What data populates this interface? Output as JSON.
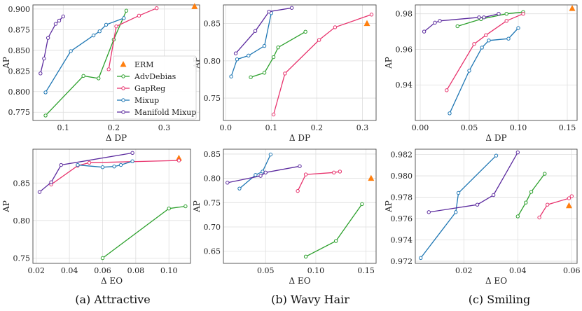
{
  "captions": [
    "(a) Attractive",
    "(b) Wavy Hair",
    "(c) Smiling"
  ],
  "legend": {
    "location": "right-center of first panel",
    "entries": [
      {
        "name": "ERM",
        "marker": "triangle",
        "color": "#ff7f0e"
      },
      {
        "name": "AdvDebias",
        "marker": "line-circle",
        "color": "#2ca02c"
      },
      {
        "name": "GapReg",
        "marker": "line-circle",
        "color": "#e8336d"
      },
      {
        "name": "Mixup",
        "marker": "line-circle",
        "color": "#1f77b4"
      },
      {
        "name": "Manifold Mixup",
        "marker": "line-circle",
        "color": "#5b2a9e"
      }
    ]
  },
  "chart_data": [
    {
      "type": "line",
      "caption": "(a) Attractive",
      "xlabel": "Δ DP",
      "ylabel": "AP",
      "xlim": [
        0.04,
        0.37
      ],
      "ylim": [
        0.765,
        0.905
      ],
      "grid": true,
      "xticks": [
        0.1,
        0.2,
        0.3
      ],
      "xtick_labels": [
        "0.1",
        "0.2",
        "0.3"
      ],
      "yticks": [
        0.775,
        0.8,
        0.825,
        0.85,
        0.875,
        0.9
      ],
      "ytick_labels": [
        "0.775",
        "0.800",
        "0.825",
        "0.850",
        "0.875",
        "0.900"
      ],
      "series": [
        {
          "name": "ERM",
          "color": "#ff7f0e",
          "marker": "triangle",
          "points": [
            [
              0.36,
              0.903
            ]
          ]
        },
        {
          "name": "AdvDebias",
          "color": "#2ca02c",
          "points": [
            [
              0.065,
              0.771
            ],
            [
              0.14,
              0.819
            ],
            [
              0.17,
              0.816
            ],
            [
              0.2,
              0.863
            ],
            [
              0.225,
              0.898
            ]
          ]
        },
        {
          "name": "GapReg",
          "color": "#e8336d",
          "points": [
            [
              0.19,
              0.827
            ],
            [
              0.205,
              0.879
            ],
            [
              0.25,
              0.892
            ],
            [
              0.285,
              0.901
            ]
          ]
        },
        {
          "name": "Mixup",
          "color": "#1f77b4",
          "points": [
            [
              0.065,
              0.799
            ],
            [
              0.115,
              0.849
            ],
            [
              0.16,
              0.868
            ],
            [
              0.172,
              0.873
            ],
            [
              0.185,
              0.881
            ],
            [
              0.22,
              0.889
            ]
          ]
        },
        {
          "name": "Manifold Mixup",
          "color": "#5b2a9e",
          "points": [
            [
              0.055,
              0.822
            ],
            [
              0.062,
              0.84
            ],
            [
              0.07,
              0.865
            ],
            [
              0.085,
              0.882
            ],
            [
              0.092,
              0.886
            ],
            [
              0.1,
              0.891
            ]
          ]
        }
      ]
    },
    {
      "type": "line",
      "caption": "(b) Wavy Hair",
      "xlabel": "Δ DP",
      "ylabel": "AP",
      "xlim": [
        -0.005,
        0.33
      ],
      "ylim": [
        0.72,
        0.875
      ],
      "grid": true,
      "xticks": [
        0.0,
        0.1,
        0.2,
        0.3
      ],
      "xtick_labels": [
        "0.0",
        "0.1",
        "0.2",
        "0.3"
      ],
      "yticks": [
        0.75,
        0.8,
        0.85
      ],
      "ytick_labels": [
        "0.75",
        "0.80",
        "0.85"
      ],
      "series": [
        {
          "name": "ERM",
          "color": "#ff7f0e",
          "marker": "triangle",
          "points": [
            [
              0.31,
              0.85
            ]
          ]
        },
        {
          "name": "AdvDebias",
          "color": "#2ca02c",
          "points": [
            [
              0.055,
              0.778
            ],
            [
              0.085,
              0.784
            ],
            [
              0.105,
              0.805
            ],
            [
              0.115,
              0.818
            ],
            [
              0.175,
              0.839
            ]
          ]
        },
        {
          "name": "GapReg",
          "color": "#e8336d",
          "points": [
            [
              0.105,
              0.728
            ],
            [
              0.13,
              0.783
            ],
            [
              0.205,
              0.828
            ],
            [
              0.24,
              0.845
            ],
            [
              0.32,
              0.862
            ]
          ]
        },
        {
          "name": "Mixup",
          "color": "#1f77b4",
          "points": [
            [
              0.012,
              0.779
            ],
            [
              0.025,
              0.802
            ],
            [
              0.05,
              0.807
            ],
            [
              0.085,
              0.82
            ],
            [
              0.1,
              0.864
            ]
          ]
        },
        {
          "name": "Manifold Mixup",
          "color": "#5b2a9e",
          "points": [
            [
              0.022,
              0.81
            ],
            [
              0.065,
              0.84
            ],
            [
              0.095,
              0.866
            ],
            [
              0.145,
              0.871
            ]
          ]
        }
      ]
    },
    {
      "type": "line",
      "caption": "(c) Smiling",
      "xlabel": "Δ DP",
      "ylabel": "AP",
      "xlim": [
        -0.005,
        0.16
      ],
      "ylim": [
        0.92,
        0.985
      ],
      "grid": true,
      "xticks": [
        0.0,
        0.05,
        0.1,
        0.15
      ],
      "xtick_labels": [
        "0.00",
        "0.05",
        "0.10",
        "0.15"
      ],
      "yticks": [
        0.94,
        0.96,
        0.98
      ],
      "ytick_labels": [
        "0.94",
        "0.96",
        "0.98"
      ],
      "series": [
        {
          "name": "ERM",
          "color": "#ff7f0e",
          "marker": "triangle",
          "points": [
            [
              0.155,
              0.983
            ]
          ]
        },
        {
          "name": "AdvDebias",
          "color": "#2ca02c",
          "points": [
            [
              0.038,
              0.973
            ],
            [
              0.062,
              0.977
            ],
            [
              0.088,
              0.98
            ],
            [
              0.105,
              0.981
            ]
          ]
        },
        {
          "name": "GapReg",
          "color": "#e8336d",
          "points": [
            [
              0.027,
              0.937
            ],
            [
              0.055,
              0.963
            ],
            [
              0.067,
              0.968
            ],
            [
              0.088,
              0.976
            ],
            [
              0.105,
              0.98
            ]
          ]
        },
        {
          "name": "Mixup",
          "color": "#1f77b4",
          "points": [
            [
              0.03,
              0.924
            ],
            [
              0.05,
              0.948
            ],
            [
              0.063,
              0.961
            ],
            [
              0.07,
              0.965
            ],
            [
              0.09,
              0.966
            ],
            [
              0.1,
              0.972
            ]
          ]
        },
        {
          "name": "Manifold Mixup",
          "color": "#5b2a9e",
          "points": [
            [
              0.004,
              0.97
            ],
            [
              0.015,
              0.975
            ],
            [
              0.02,
              0.976
            ],
            [
              0.06,
              0.978
            ],
            [
              0.065,
              0.978
            ],
            [
              0.08,
              0.98
            ]
          ]
        }
      ]
    },
    {
      "type": "line",
      "caption": "(a) Attractive",
      "xlabel": "Δ EO",
      "ylabel": "AP",
      "xlim": [
        0.018,
        0.113
      ],
      "ylim": [
        0.743,
        0.895
      ],
      "grid": true,
      "xticks": [
        0.02,
        0.04,
        0.06,
        0.08,
        0.1
      ],
      "xtick_labels": [
        "0.02",
        "0.04",
        "0.06",
        "0.08",
        "0.10"
      ],
      "yticks": [
        0.75,
        0.8,
        0.85
      ],
      "ytick_labels": [
        "0.75",
        "0.80",
        "0.85"
      ],
      "series": [
        {
          "name": "ERM",
          "color": "#ff7f0e",
          "marker": "triangle",
          "points": [
            [
              0.106,
              0.883
            ]
          ]
        },
        {
          "name": "AdvDebias",
          "color": "#2ca02c",
          "points": [
            [
              0.06,
              0.75
            ],
            [
              0.1,
              0.816
            ],
            [
              0.11,
              0.819
            ]
          ]
        },
        {
          "name": "GapReg",
          "color": "#e8336d",
          "points": [
            [
              0.029,
              0.848
            ],
            [
              0.045,
              0.873
            ],
            [
              0.052,
              0.877
            ],
            [
              0.106,
              0.88
            ]
          ]
        },
        {
          "name": "Mixup",
          "color": "#1f77b4",
          "points": [
            [
              0.045,
              0.874
            ],
            [
              0.06,
              0.871
            ],
            [
              0.067,
              0.872
            ],
            [
              0.071,
              0.874
            ],
            [
              0.078,
              0.879
            ]
          ]
        },
        {
          "name": "Manifold Mixup",
          "color": "#5b2a9e",
          "points": [
            [
              0.022,
              0.838
            ],
            [
              0.029,
              0.851
            ],
            [
              0.035,
              0.874
            ],
            [
              0.078,
              0.89
            ]
          ]
        }
      ]
    },
    {
      "type": "line",
      "caption": "(b) Wavy Hair",
      "xlabel": "Δ EO",
      "ylabel": "AP",
      "xlim": [
        0.008,
        0.16
      ],
      "ylim": [
        0.625,
        0.86
      ],
      "grid": true,
      "xticks": [
        0.05,
        0.1,
        0.15
      ],
      "xtick_labels": [
        "0.05",
        "0.10",
        "0.15"
      ],
      "yticks": [
        0.65,
        0.7,
        0.75,
        0.8,
        0.85
      ],
      "ytick_labels": [
        "0.65",
        "0.70",
        "0.75",
        "0.80",
        "0.85"
      ],
      "series": [
        {
          "name": "ERM",
          "color": "#ff7f0e",
          "marker": "triangle",
          "points": [
            [
              0.155,
              0.8
            ]
          ]
        },
        {
          "name": "AdvDebias",
          "color": "#2ca02c",
          "points": [
            [
              0.09,
              0.639
            ],
            [
              0.12,
              0.671
            ],
            [
              0.146,
              0.747
            ]
          ]
        },
        {
          "name": "GapReg",
          "color": "#e8336d",
          "points": [
            [
              0.082,
              0.774
            ],
            [
              0.09,
              0.808
            ],
            [
              0.118,
              0.812
            ],
            [
              0.124,
              0.814
            ]
          ]
        },
        {
          "name": "Mixup",
          "color": "#1f77b4",
          "points": [
            [
              0.024,
              0.779
            ],
            [
              0.04,
              0.807
            ],
            [
              0.047,
              0.814
            ],
            [
              0.055,
              0.849
            ]
          ]
        },
        {
          "name": "Manifold Mixup",
          "color": "#5b2a9e",
          "points": [
            [
              0.012,
              0.791
            ],
            [
              0.045,
              0.805
            ],
            [
              0.05,
              0.812
            ],
            [
              0.084,
              0.825
            ]
          ]
        }
      ]
    },
    {
      "type": "line",
      "caption": "(c) Smiling",
      "xlabel": "Δ EO",
      "ylabel": "AP",
      "xlim": [
        0.002,
        0.062
      ],
      "ylim": [
        0.9718,
        0.9825
      ],
      "grid": true,
      "xticks": [
        0.02,
        0.04,
        0.06
      ],
      "xtick_labels": [
        "0.02",
        "0.04",
        "0.06"
      ],
      "yticks": [
        0.972,
        0.974,
        0.976,
        0.978,
        0.98,
        0.982
      ],
      "ytick_labels": [
        "0.972",
        "0.974",
        "0.976",
        "0.978",
        "0.980",
        "0.982"
      ],
      "series": [
        {
          "name": "ERM",
          "color": "#ff7f0e",
          "marker": "triangle",
          "points": [
            [
              0.059,
              0.9772
            ]
          ]
        },
        {
          "name": "AdvDebias",
          "color": "#2ca02c",
          "points": [
            [
              0.04,
              0.9762
            ],
            [
              0.043,
              0.9775
            ],
            [
              0.045,
              0.9785
            ],
            [
              0.05,
              0.9802
            ]
          ]
        },
        {
          "name": "GapReg",
          "color": "#e8336d",
          "points": [
            [
              0.048,
              0.9761
            ],
            [
              0.051,
              0.9773
            ],
            [
              0.059,
              0.9779
            ],
            [
              0.06,
              0.9781
            ]
          ]
        },
        {
          "name": "Mixup",
          "color": "#1f77b4",
          "points": [
            [
              0.004,
              0.9723
            ],
            [
              0.017,
              0.9766
            ],
            [
              0.018,
              0.9784
            ],
            [
              0.032,
              0.9819
            ]
          ]
        },
        {
          "name": "Manifold Mixup",
          "color": "#5b2a9e",
          "points": [
            [
              0.007,
              0.9766
            ],
            [
              0.025,
              0.9773
            ],
            [
              0.031,
              0.9782
            ],
            [
              0.04,
              0.9822
            ]
          ]
        }
      ]
    }
  ]
}
